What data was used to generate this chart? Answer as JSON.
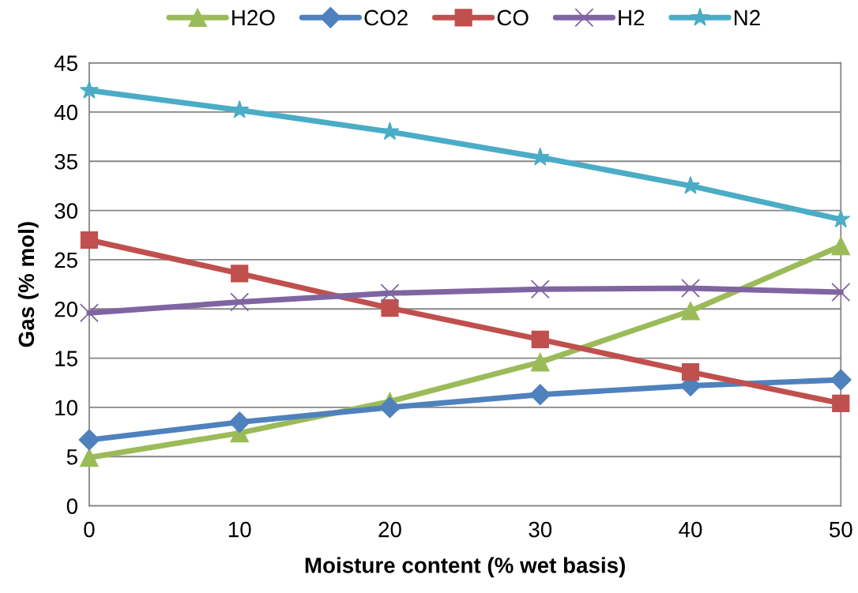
{
  "chart_data": {
    "type": "line",
    "xlabel": "Moisture content (% wet basis)",
    "ylabel": "Gas (% mol)",
    "x": [
      0,
      10,
      20,
      30,
      40,
      50
    ],
    "series": [
      {
        "name": "H2O",
        "color": "#9bbb59",
        "marker": "triangle",
        "values": [
          4.9,
          7.4,
          10.6,
          14.6,
          19.8,
          26.4
        ]
      },
      {
        "name": "CO2",
        "color": "#4f81bd",
        "marker": "diamond",
        "values": [
          6.7,
          8.5,
          10.0,
          11.3,
          12.2,
          12.8
        ]
      },
      {
        "name": "CO",
        "color": "#c0504d",
        "marker": "square",
        "values": [
          27.0,
          23.6,
          20.1,
          16.9,
          13.6,
          10.4
        ]
      },
      {
        "name": "H2",
        "color": "#8064a2",
        "marker": "cross",
        "values": [
          19.6,
          20.7,
          21.6,
          22.0,
          22.1,
          21.7
        ]
      },
      {
        "name": "N2",
        "color": "#4bacc6",
        "marker": "star",
        "values": [
          42.2,
          40.2,
          38.0,
          35.4,
          32.5,
          29.1
        ]
      }
    ],
    "xlim": [
      0,
      50
    ],
    "xticks": [
      0,
      10,
      20,
      30,
      40,
      50
    ],
    "ylim": [
      0,
      45
    ],
    "yticks": [
      0,
      5,
      10,
      15,
      20,
      25,
      30,
      35,
      40,
      45
    ],
    "grid": "y",
    "legend": "top",
    "line_style": "solid"
  }
}
